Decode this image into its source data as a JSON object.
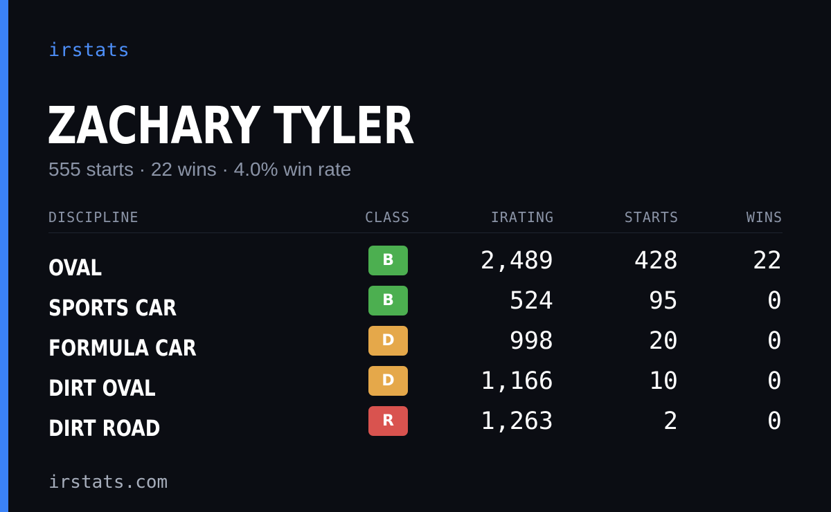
{
  "brand": {
    "name": "irstats"
  },
  "driver": {
    "name": "ZACHARY TYLER",
    "summary": "555 starts · 22 wins · 4.0% win rate"
  },
  "table": {
    "headers": {
      "discipline": "DISCIPLINE",
      "class": "CLASS",
      "irating": "IRATING",
      "starts": "STARTS",
      "wins": "WINS"
    },
    "rows": [
      {
        "discipline": "OVAL",
        "class": "B",
        "class_color": "#4caf50",
        "irating": "2,489",
        "starts": "428",
        "wins": "22"
      },
      {
        "discipline": "SPORTS CAR",
        "class": "B",
        "class_color": "#4caf50",
        "irating": "524",
        "starts": "95",
        "wins": "0"
      },
      {
        "discipline": "FORMULA CAR",
        "class": "D",
        "class_color": "#e5a84a",
        "irating": "998",
        "starts": "20",
        "wins": "0"
      },
      {
        "discipline": "DIRT OVAL",
        "class": "D",
        "class_color": "#e5a84a",
        "irating": "1,166",
        "starts": "10",
        "wins": "0"
      },
      {
        "discipline": "DIRT ROAD",
        "class": "R",
        "class_color": "#d9534f",
        "irating": "1,263",
        "starts": "2",
        "wins": "0"
      }
    ]
  },
  "footer": {
    "url": "irstats.com"
  },
  "colors": {
    "background": "#0b0d13",
    "accent": "#3b82f6",
    "brand_text": "#4d8ef7",
    "muted_text": "#8b94a7"
  }
}
